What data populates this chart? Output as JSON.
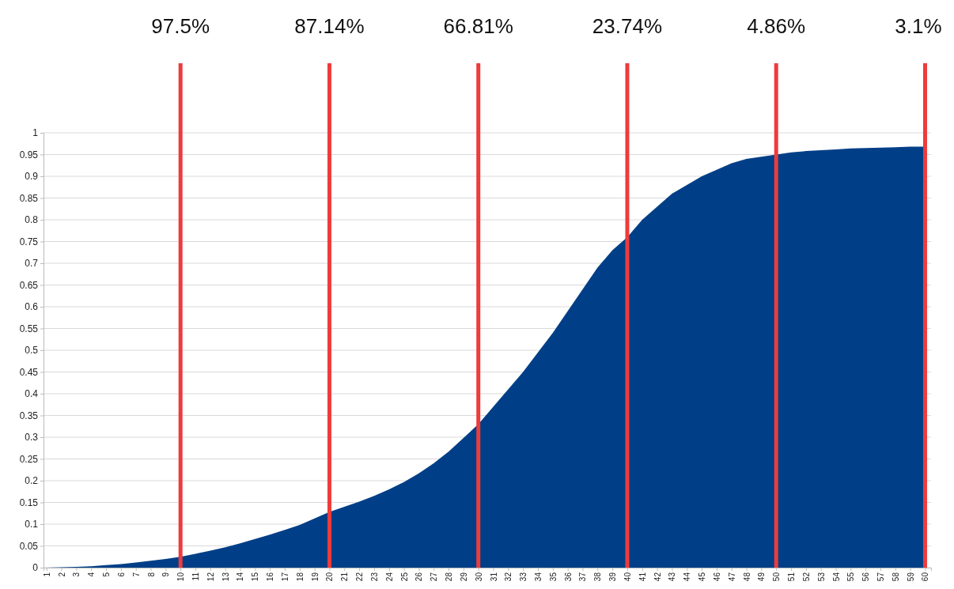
{
  "chart_data": {
    "type": "area",
    "categories": [
      "1",
      "2",
      "3",
      "4",
      "5",
      "6",
      "7",
      "8",
      "9",
      "10",
      "11",
      "12",
      "13",
      "14",
      "15",
      "16",
      "17",
      "18",
      "19",
      "20",
      "21",
      "22",
      "23",
      "24",
      "25",
      "26",
      "27",
      "28",
      "29",
      "30",
      "31",
      "32",
      "33",
      "34",
      "35",
      "36",
      "37",
      "38",
      "39",
      "40",
      "41",
      "42",
      "43",
      "44",
      "45",
      "46",
      "47",
      "48",
      "49",
      "50",
      "51",
      "52",
      "53",
      "54",
      "55",
      "56",
      "57",
      "58",
      "59",
      "60"
    ],
    "series": [
      {
        "color": "#003f87",
        "values": [
          0,
          0.001,
          0.002,
          0.003,
          0.006,
          0.008,
          0.012,
          0.016,
          0.02,
          0.025,
          0.032,
          0.039,
          0.047,
          0.056,
          0.066,
          0.076,
          0.087,
          0.098,
          0.113,
          0.128,
          0.14,
          0.152,
          0.165,
          0.18,
          0.197,
          0.217,
          0.24,
          0.267,
          0.298,
          0.33,
          0.37,
          0.41,
          0.45,
          0.495,
          0.54,
          0.59,
          0.64,
          0.69,
          0.73,
          0.76,
          0.8,
          0.83,
          0.86,
          0.88,
          0.9,
          0.915,
          0.93,
          0.94,
          0.945,
          0.95,
          0.955,
          0.958,
          0.96,
          0.962,
          0.964,
          0.965,
          0.966,
          0.967,
          0.968,
          0.968
        ]
      }
    ],
    "ylim": [
      0,
      1
    ],
    "yticks": [
      0,
      0.05,
      0.1,
      0.15,
      0.2,
      0.25,
      0.3,
      0.35,
      0.4,
      0.45,
      0.5,
      0.55,
      0.6,
      0.65,
      0.7,
      0.75,
      0.8,
      0.85,
      0.9,
      0.95,
      1
    ],
    "grid": "y",
    "ref_lines": [
      {
        "axis": "x",
        "value": "10",
        "label": "97.5%",
        "color": "#ee3b3b"
      },
      {
        "axis": "x",
        "value": "20",
        "label": "87.14%",
        "color": "#ee3b3b"
      },
      {
        "axis": "x",
        "value": "30",
        "label": "66.81%",
        "color": "#ee3b3b"
      },
      {
        "axis": "x",
        "value": "40",
        "label": "23.74%",
        "color": "#ee3b3b"
      },
      {
        "axis": "x",
        "value": "50",
        "label": "4.86%",
        "color": "#ee3b3b"
      },
      {
        "axis": "x",
        "value": "60",
        "label": "3.1%",
        "color": "#ee3b3b"
      }
    ]
  }
}
